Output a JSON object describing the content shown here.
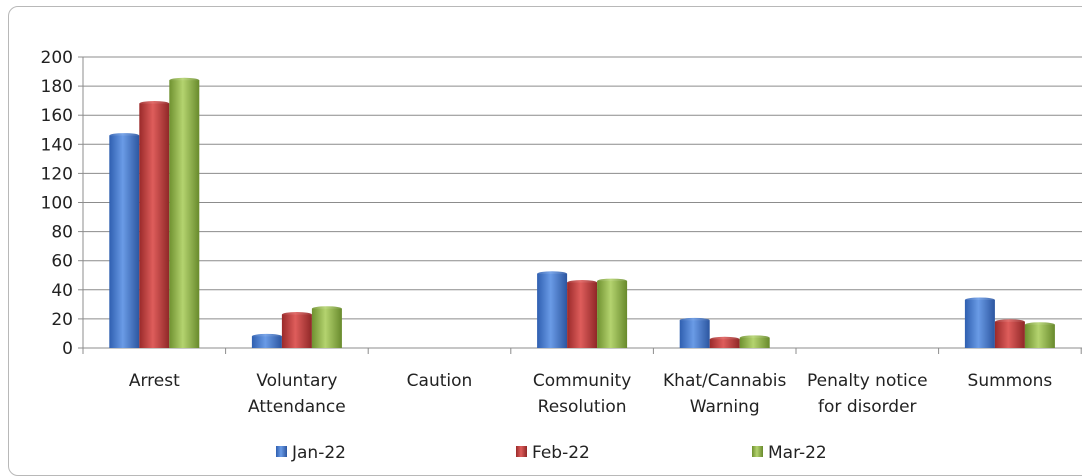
{
  "chart_data": {
    "type": "bar",
    "categories": [
      [
        "Arrest"
      ],
      [
        "Voluntary",
        "Attendance"
      ],
      [
        "Caution"
      ],
      [
        "Community",
        "Resolution"
      ],
      [
        "Khat/Cannabis",
        "Warning"
      ],
      [
        "Penalty notice",
        "for disorder"
      ],
      [
        "Summons"
      ]
    ],
    "series": [
      {
        "name": "Jan-22",
        "color": "#4a7fd4",
        "values": [
          146,
          8,
          0,
          51,
          19,
          0,
          33
        ]
      },
      {
        "name": "Feb-22",
        "color": "#c0403f",
        "values": [
          168,
          23,
          0,
          45,
          6,
          0,
          18
        ]
      },
      {
        "name": "Mar-22",
        "color": "#95b84f",
        "values": [
          184,
          27,
          0,
          46,
          7,
          0,
          16
        ]
      }
    ],
    "ylim": [
      0,
      200
    ],
    "yticks": [
      0,
      20,
      40,
      60,
      80,
      100,
      120,
      140,
      160,
      180,
      200
    ],
    "grid": true,
    "legend_position": "bottom"
  }
}
